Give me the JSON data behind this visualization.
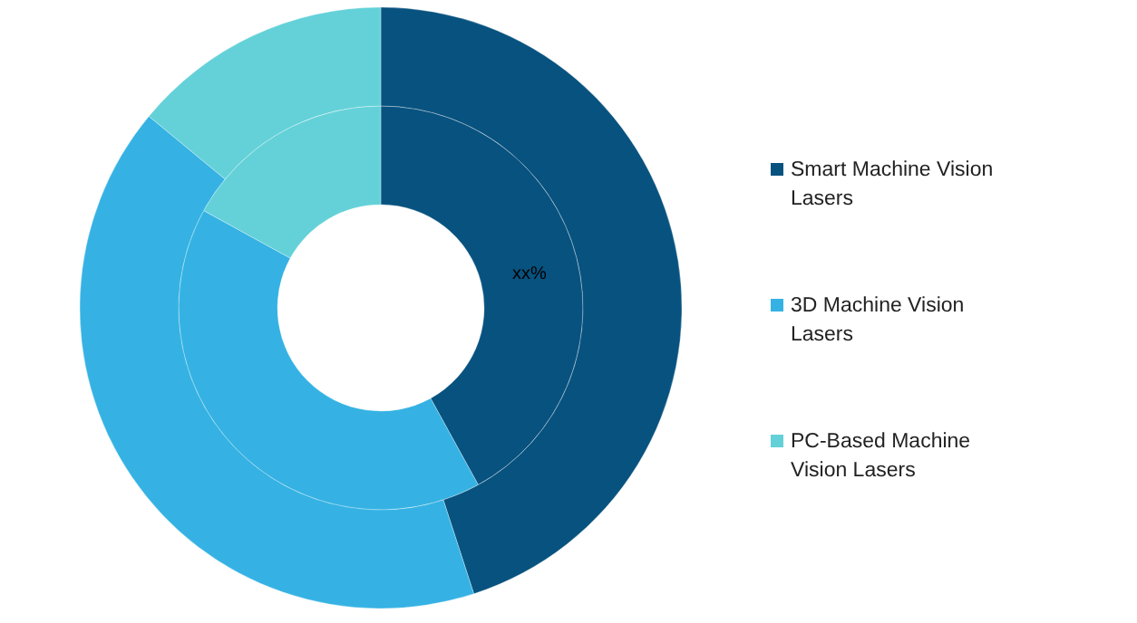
{
  "chart_data": {
    "type": "donut",
    "categories": [
      "Smart Machine Vision Lasers",
      "3D Machine Vision Lasers",
      "PC-Based Machine Vision Lasers"
    ],
    "colors": [
      "#08527f",
      "#35b2e3",
      "#64d1d9"
    ],
    "series": [
      {
        "values": [
          42,
          41,
          17
        ]
      },
      {
        "values": [
          45,
          41,
          14
        ]
      }
    ],
    "annotations": [
      "xx%"
    ],
    "legend": "right"
  }
}
